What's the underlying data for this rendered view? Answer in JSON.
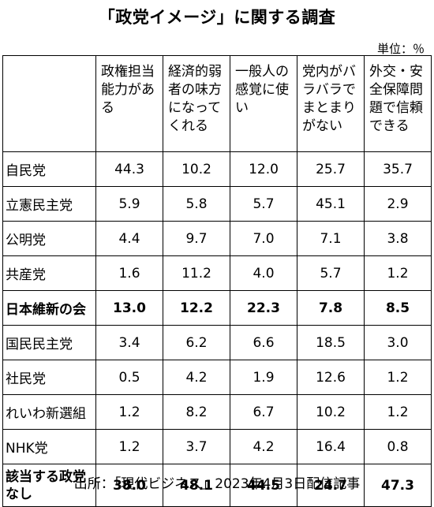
{
  "title": "「政党イメージ」に関する調査",
  "unit": "単位：％",
  "columns": [
    "政権担当能力がある",
    "経済的弱者の味方になってくれる",
    "一般人の感覚に使い",
    "党内がバラバラでまとまりがない",
    "外交・安全保障問題で信頼できる"
  ],
  "rows": [
    {
      "label": "自民党",
      "values": [
        "44.3",
        "10.2",
        "12.0",
        "25.7",
        "35.7"
      ],
      "bold": false
    },
    {
      "label": "立憲民主党",
      "values": [
        "5.9",
        "5.8",
        "5.7",
        "45.1",
        "2.9"
      ],
      "bold": false
    },
    {
      "label": "公明党",
      "values": [
        "4.4",
        "9.7",
        "7.0",
        "7.1",
        "3.8"
      ],
      "bold": false
    },
    {
      "label": "共産党",
      "values": [
        "1.6",
        "11.2",
        "4.0",
        "5.7",
        "1.2"
      ],
      "bold": false
    },
    {
      "label": "日本維新の会",
      "values": [
        "13.0",
        "12.2",
        "22.3",
        "7.8",
        "8.5"
      ],
      "bold": true
    },
    {
      "label": "国民民主党",
      "values": [
        "3.4",
        "6.2",
        "6.6",
        "18.5",
        "3.0"
      ],
      "bold": false
    },
    {
      "label": "社民党",
      "values": [
        "0.5",
        "4.2",
        "1.9",
        "12.6",
        "1.2"
      ],
      "bold": false
    },
    {
      "label": "れいわ新選組",
      "values": [
        "1.2",
        "8.2",
        "6.7",
        "10.2",
        "1.2"
      ],
      "bold": false
    },
    {
      "label": "NHK党",
      "values": [
        "1.2",
        "3.7",
        "4.2",
        "16.4",
        "0.8"
      ],
      "bold": false
    },
    {
      "label": "該当する政党なし",
      "values": [
        "38.0",
        "48.1",
        "44.5",
        "24.7",
        "47.3"
      ],
      "bold": true
    }
  ],
  "source": "出所：「現代ビジネス」2023年4月3日配信記事"
}
